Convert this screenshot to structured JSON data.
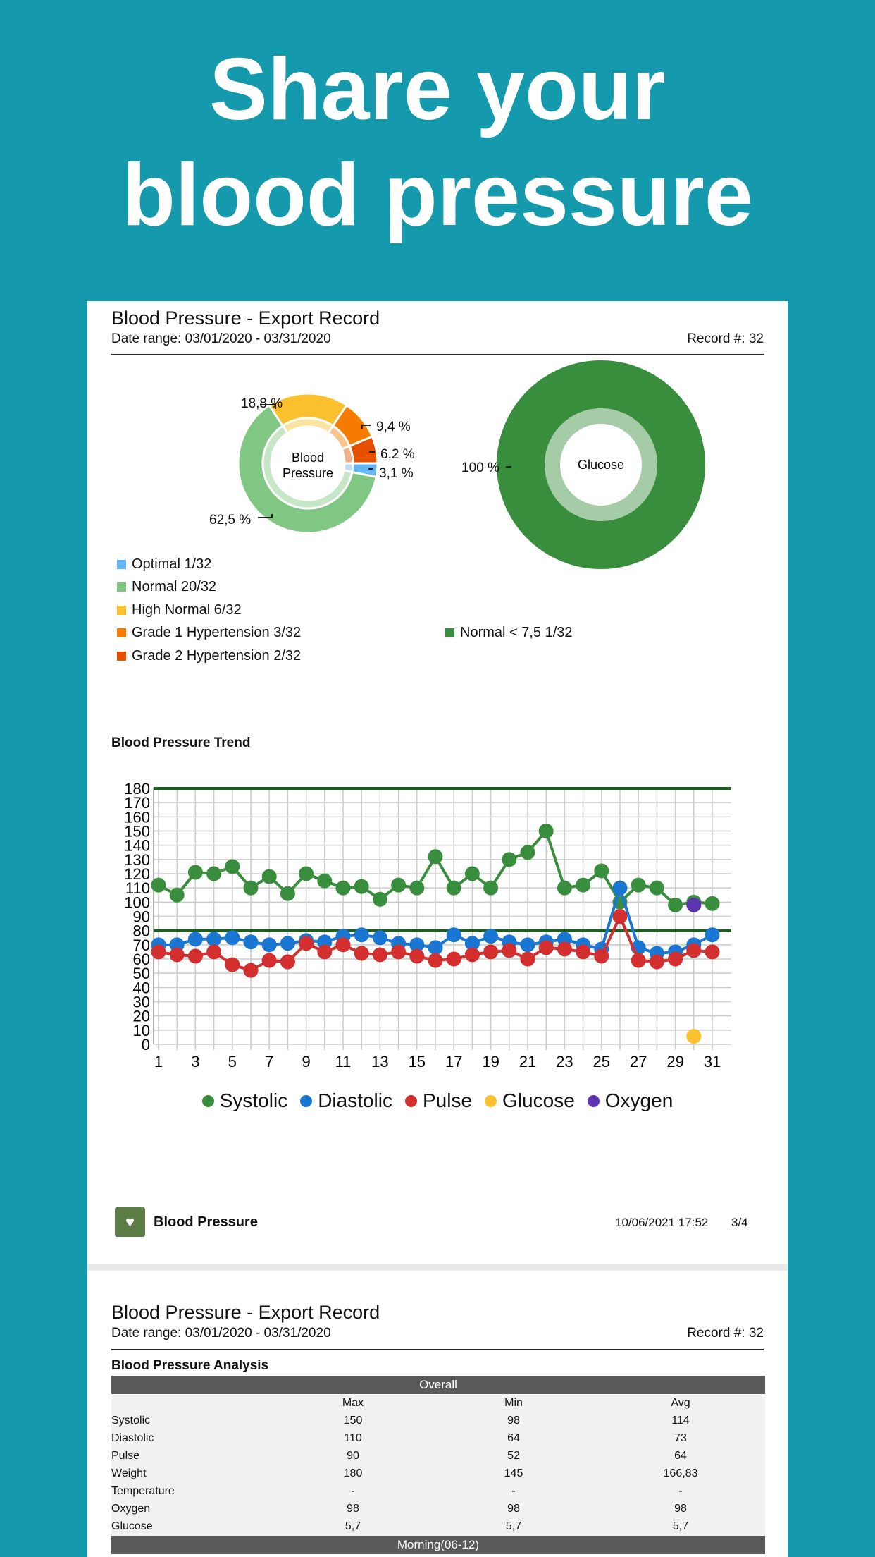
{
  "headline": {
    "line1": "Share your",
    "line2": "blood pressure"
  },
  "report": {
    "title": "Blood Pressure - Export Record",
    "date_range": "Date range: 03/01/2020 - 03/31/2020",
    "record": "Record #: 32"
  },
  "bp_donut": {
    "center_label_line1": "Blood",
    "center_label_line2": "Pressure",
    "slices": [
      {
        "label": "Optimal 1/32",
        "percent_label": "3,1 %",
        "value": 1,
        "color": "#64b5f6"
      },
      {
        "label": "Normal 20/32",
        "percent_label": "62,5 %",
        "value": 20,
        "color": "#81c784"
      },
      {
        "label": "High Normal 6/32",
        "percent_label": "18,8 %",
        "value": 6,
        "color": "#fbc02d"
      },
      {
        "label": "Grade 1 Hypertension 3/32",
        "percent_label": "9,4 %",
        "value": 3,
        "color": "#f57c00"
      },
      {
        "label": "Grade 2 Hypertension 2/32",
        "percent_label": "6,2 %",
        "value": 2,
        "color": "#e65100"
      }
    ]
  },
  "glucose_donut": {
    "center_label": "Glucose",
    "slices": [
      {
        "label": "Normal < 7,5 1/32",
        "percent_label": "100 %",
        "value": 1,
        "color": "#388e3c"
      }
    ]
  },
  "trend": {
    "title": "Blood Pressure Trend"
  },
  "chart_data": {
    "type": "line",
    "title": "Blood Pressure Trend",
    "x": [
      1,
      2,
      3,
      4,
      5,
      6,
      7,
      8,
      9,
      10,
      11,
      12,
      13,
      14,
      15,
      16,
      17,
      18,
      19,
      20,
      21,
      22,
      23,
      24,
      25,
      26,
      27,
      28,
      29,
      30,
      31
    ],
    "x_tick_labels": [
      "1",
      "3",
      "5",
      "7",
      "9",
      "11",
      "13",
      "15",
      "17",
      "19",
      "21",
      "23",
      "25",
      "27",
      "29",
      "31"
    ],
    "ylim": [
      0,
      180
    ],
    "y_tick_labels": [
      "0",
      "10",
      "20",
      "30",
      "40",
      "50",
      "60",
      "70",
      "80",
      "90",
      "100",
      "110",
      "120",
      "130",
      "140",
      "150",
      "160",
      "170",
      "180"
    ],
    "grid": true,
    "reference_lines": [
      180,
      80
    ],
    "reference_line_color": "#1b5e20",
    "legend_position": "bottom",
    "series": [
      {
        "name": "Systolic",
        "color": "#388e3c",
        "values": [
          112,
          105,
          121,
          120,
          125,
          110,
          118,
          106,
          120,
          115,
          110,
          111,
          102,
          112,
          110,
          132,
          110,
          120,
          110,
          130,
          135,
          150,
          110,
          112,
          122,
          100,
          112,
          110,
          98,
          100,
          99
        ]
      },
      {
        "name": "Diastolic",
        "color": "#1976d2",
        "values": [
          70,
          70,
          74,
          74,
          75,
          72,
          70,
          71,
          73,
          72,
          76,
          77,
          75,
          71,
          70,
          68,
          77,
          71,
          76,
          72,
          70,
          72,
          74,
          70,
          67,
          110,
          68,
          64,
          65,
          70,
          77
        ]
      },
      {
        "name": "Pulse",
        "color": "#d32f2f",
        "values": [
          65,
          63,
          62,
          65,
          56,
          52,
          59,
          58,
          71,
          65,
          70,
          64,
          63,
          65,
          62,
          59,
          60,
          63,
          65,
          66,
          60,
          68,
          67,
          65,
          62,
          90,
          59,
          58,
          60,
          66,
          65
        ]
      },
      {
        "name": "Glucose",
        "color": "#fbc02d",
        "points": [
          [
            30,
            5.7
          ]
        ]
      },
      {
        "name": "Oxygen",
        "color": "#5e35b1",
        "points": [
          [
            30,
            98
          ]
        ]
      }
    ]
  },
  "footer": {
    "app_name": "Blood Pressure",
    "timestamp": "10/06/2021 17:52",
    "page": "3/4",
    "icon": "heart-clipboard-icon"
  },
  "analysis": {
    "title": "Blood Pressure Analysis",
    "section_overall": "Overall",
    "columns": [
      "",
      "Max",
      "Min",
      "Avg"
    ],
    "rows": [
      [
        "Systolic",
        "150",
        "98",
        "114"
      ],
      [
        "Diastolic",
        "110",
        "64",
        "73"
      ],
      [
        "Pulse",
        "90",
        "52",
        "64"
      ],
      [
        "Weight",
        "180",
        "145",
        "166,83"
      ],
      [
        "Temperature",
        "-",
        "-",
        "-"
      ],
      [
        "Oxygen",
        "98",
        "98",
        "98"
      ],
      [
        "Glucose",
        "5,7",
        "5,7",
        "5,7"
      ]
    ],
    "section_morning": "Morning(06-12)"
  }
}
